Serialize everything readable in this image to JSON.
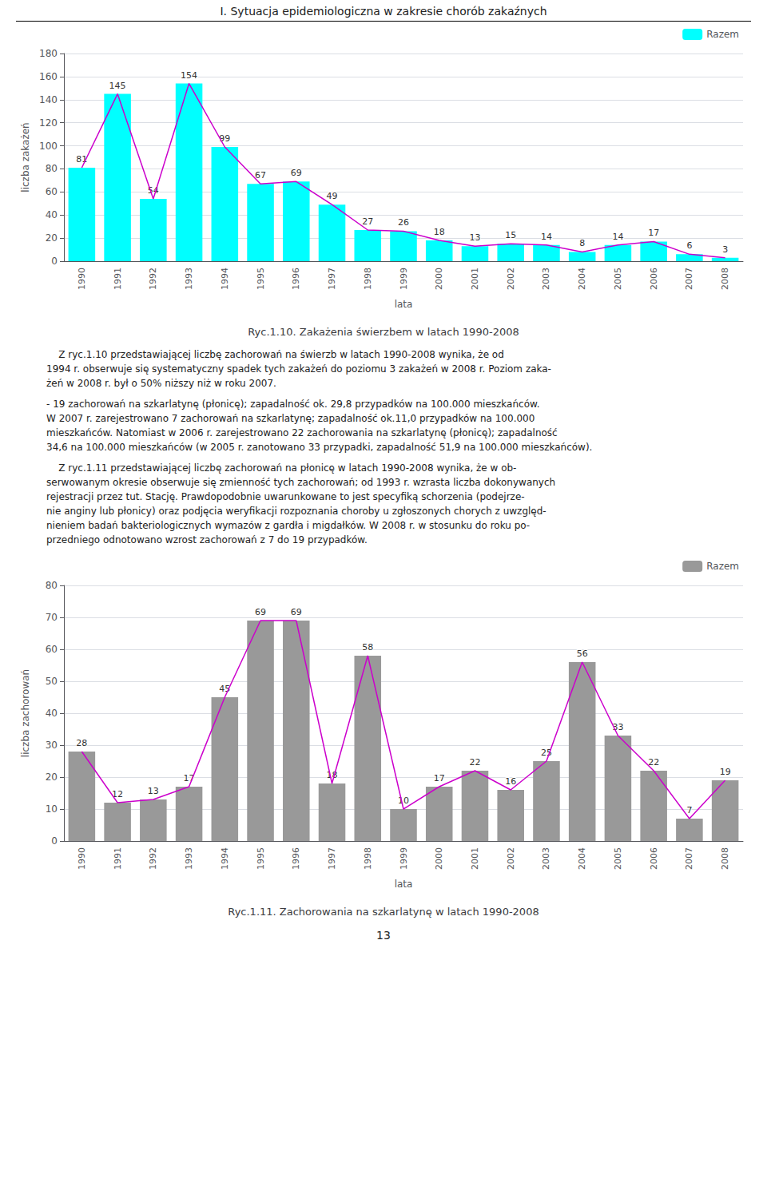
{
  "title": "I. Sytuacja epidemiologiczna w zakresie chorób zakaźnych",
  "annotations": [
    "    Z ryc.1.10 przedstawiającej liczbę zachorowań na świerzb w latach 1990-2008 wynika, że od\n1994 r. obserwuje się systematyczny spadek tych zakażeń do poziomu 3 zakażeń w 2008 r. Poziom zaka-\nżeń w 2008 r. był o 50% niższy niż w roku 2007.",
    "- 19 zachorowań na szkarlatynę (płonicę); zapadalność ok. 29,8 przypadków na 100.000 mieszkańców.\nW 2007 r. zarejestrowano 7 zachorowań na szkarlatynę; zapadalność ok.11,0 przypadków na 100.000\nmieszkańców. Natomiast w 2006 r. zarejestrowano 22 zachorowania na szkarlatynę (płonicę); zapadalność\n34,6 na 100.000 mieszkańców (w 2005 r. zanotowano 33 przypadki, zapadalność 51,9 na 100.000 mieszkańców).",
    "    Z ryc.1.11 przedstawiającej liczbę zachorowań na płonicę w latach 1990-2008 wynika, że w ob-\nserwowanym okresie obserwuje się zmienność tych zachorowań; od 1993 r. wzrasta liczba dokonywanych\nrejestracji przez tut. Stację. Prawdopodobnie uwarunkowane to jest specyfiką schorzenia (podejrze-\nnie anginy lub płonicy) oraz podjęcia weryfikacji rozpoznania choroby u zgłoszonych chorych z uwzględ-\nnieniem badań bakteriologicznych wymazów z gardła i migdałków. W 2008 r. w stosunku do roku po-\nprzedniego odnotowano wzrost zachorowań z 7 do 19 przypadków."
  ],
  "page_number": "13",
  "chart_data": [
    {
      "type": "bar",
      "title": "Ryc.1.10. Zakażenia świerzbem w latach 1990-2008",
      "xlabel": "lata",
      "ylabel": "liczba zakażeń",
      "categories": [
        "1990",
        "1991",
        "1992",
        "1993",
        "1994",
        "1995",
        "1996",
        "1997",
        "1998",
        "1999",
        "2000",
        "2001",
        "2002",
        "2003",
        "2004",
        "2005",
        "2006",
        "2007",
        "2008"
      ],
      "series": [
        {
          "name": "Razem",
          "type": "bar",
          "color": "#00FFFF",
          "values": [
            81,
            145,
            54,
            154,
            99,
            67,
            69,
            49,
            27,
            26,
            18,
            13,
            15,
            14,
            8,
            14,
            17,
            6,
            3
          ]
        },
        {
          "type": "line",
          "color": "#CC00CC",
          "values": [
            81,
            145,
            54,
            154,
            99,
            67,
            69,
            49,
            27,
            26,
            18,
            13,
            15,
            14,
            8,
            14,
            17,
            6,
            3
          ]
        }
      ],
      "ylim": [
        0,
        180
      ],
      "yticks": [
        0,
        20,
        40,
        60,
        80,
        100,
        120,
        140,
        160,
        180
      ],
      "grid": true,
      "legend": "upper right",
      "data_labels": true
    },
    {
      "type": "bar",
      "title": "Ryc.1.11. Zachorowania na szkarlatynę w latach 1990-2008",
      "xlabel": "lata",
      "ylabel": "liczba zachorowań",
      "categories": [
        "1990",
        "1991",
        "1992",
        "1993",
        "1994",
        "1995",
        "1996",
        "1997",
        "1998",
        "1999",
        "2000",
        "2001",
        "2002",
        "2003",
        "2004",
        "2005",
        "2006",
        "2007",
        "2008"
      ],
      "series": [
        {
          "name": "Razem",
          "type": "bar",
          "color": "#999999",
          "values": [
            28,
            12,
            13,
            17,
            45,
            69,
            69,
            18,
            58,
            10,
            17,
            22,
            16,
            25,
            56,
            33,
            22,
            7,
            19
          ]
        },
        {
          "type": "line",
          "color": "#CC00CC",
          "values": [
            28,
            12,
            13,
            17,
            45,
            69,
            69,
            18,
            58,
            10,
            17,
            22,
            16,
            25,
            56,
            33,
            22,
            7,
            19
          ]
        }
      ],
      "ylim": [
        0,
        80
      ],
      "yticks": [
        0,
        10,
        20,
        30,
        40,
        50,
        60,
        70,
        80
      ],
      "grid": true,
      "legend": "upper right",
      "data_labels": true
    }
  ]
}
